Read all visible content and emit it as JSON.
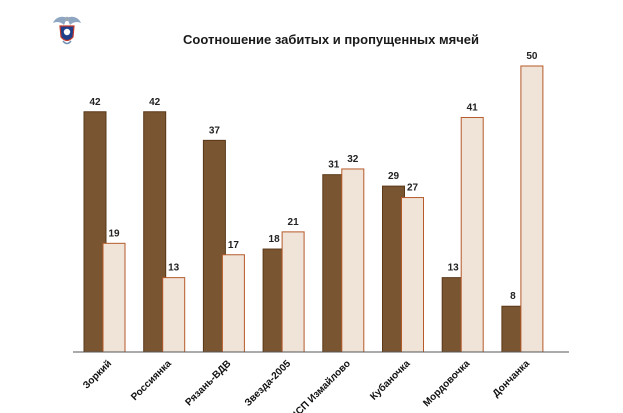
{
  "chart_data": {
    "type": "bar",
    "title": "Соотношение забитых и пропущенных мячей",
    "categories": [
      "Зоркий",
      "Россиянка",
      "Рязань-ВДВ",
      "Звезда-2005",
      "ЦСП Измайлово",
      "Кубаночка",
      "Мордовочка",
      "Дончанка"
    ],
    "series": [
      {
        "values": [
          42,
          42,
          37,
          18,
          31,
          29,
          13,
          8
        ]
      },
      {
        "values": [
          19,
          13,
          17,
          21,
          32,
          27,
          41,
          50
        ]
      }
    ],
    "ylim": [
      0,
      50
    ],
    "grid": false,
    "legend": "none"
  },
  "colors": {
    "series_1_fill": "#7a5531",
    "series_1_stroke": "#5a3818",
    "series_2_fill": "#f0e3d7",
    "series_2_stroke": "#b65a2a",
    "axis": "#555555"
  },
  "logo": {
    "icon": "federation-emblem-icon"
  }
}
